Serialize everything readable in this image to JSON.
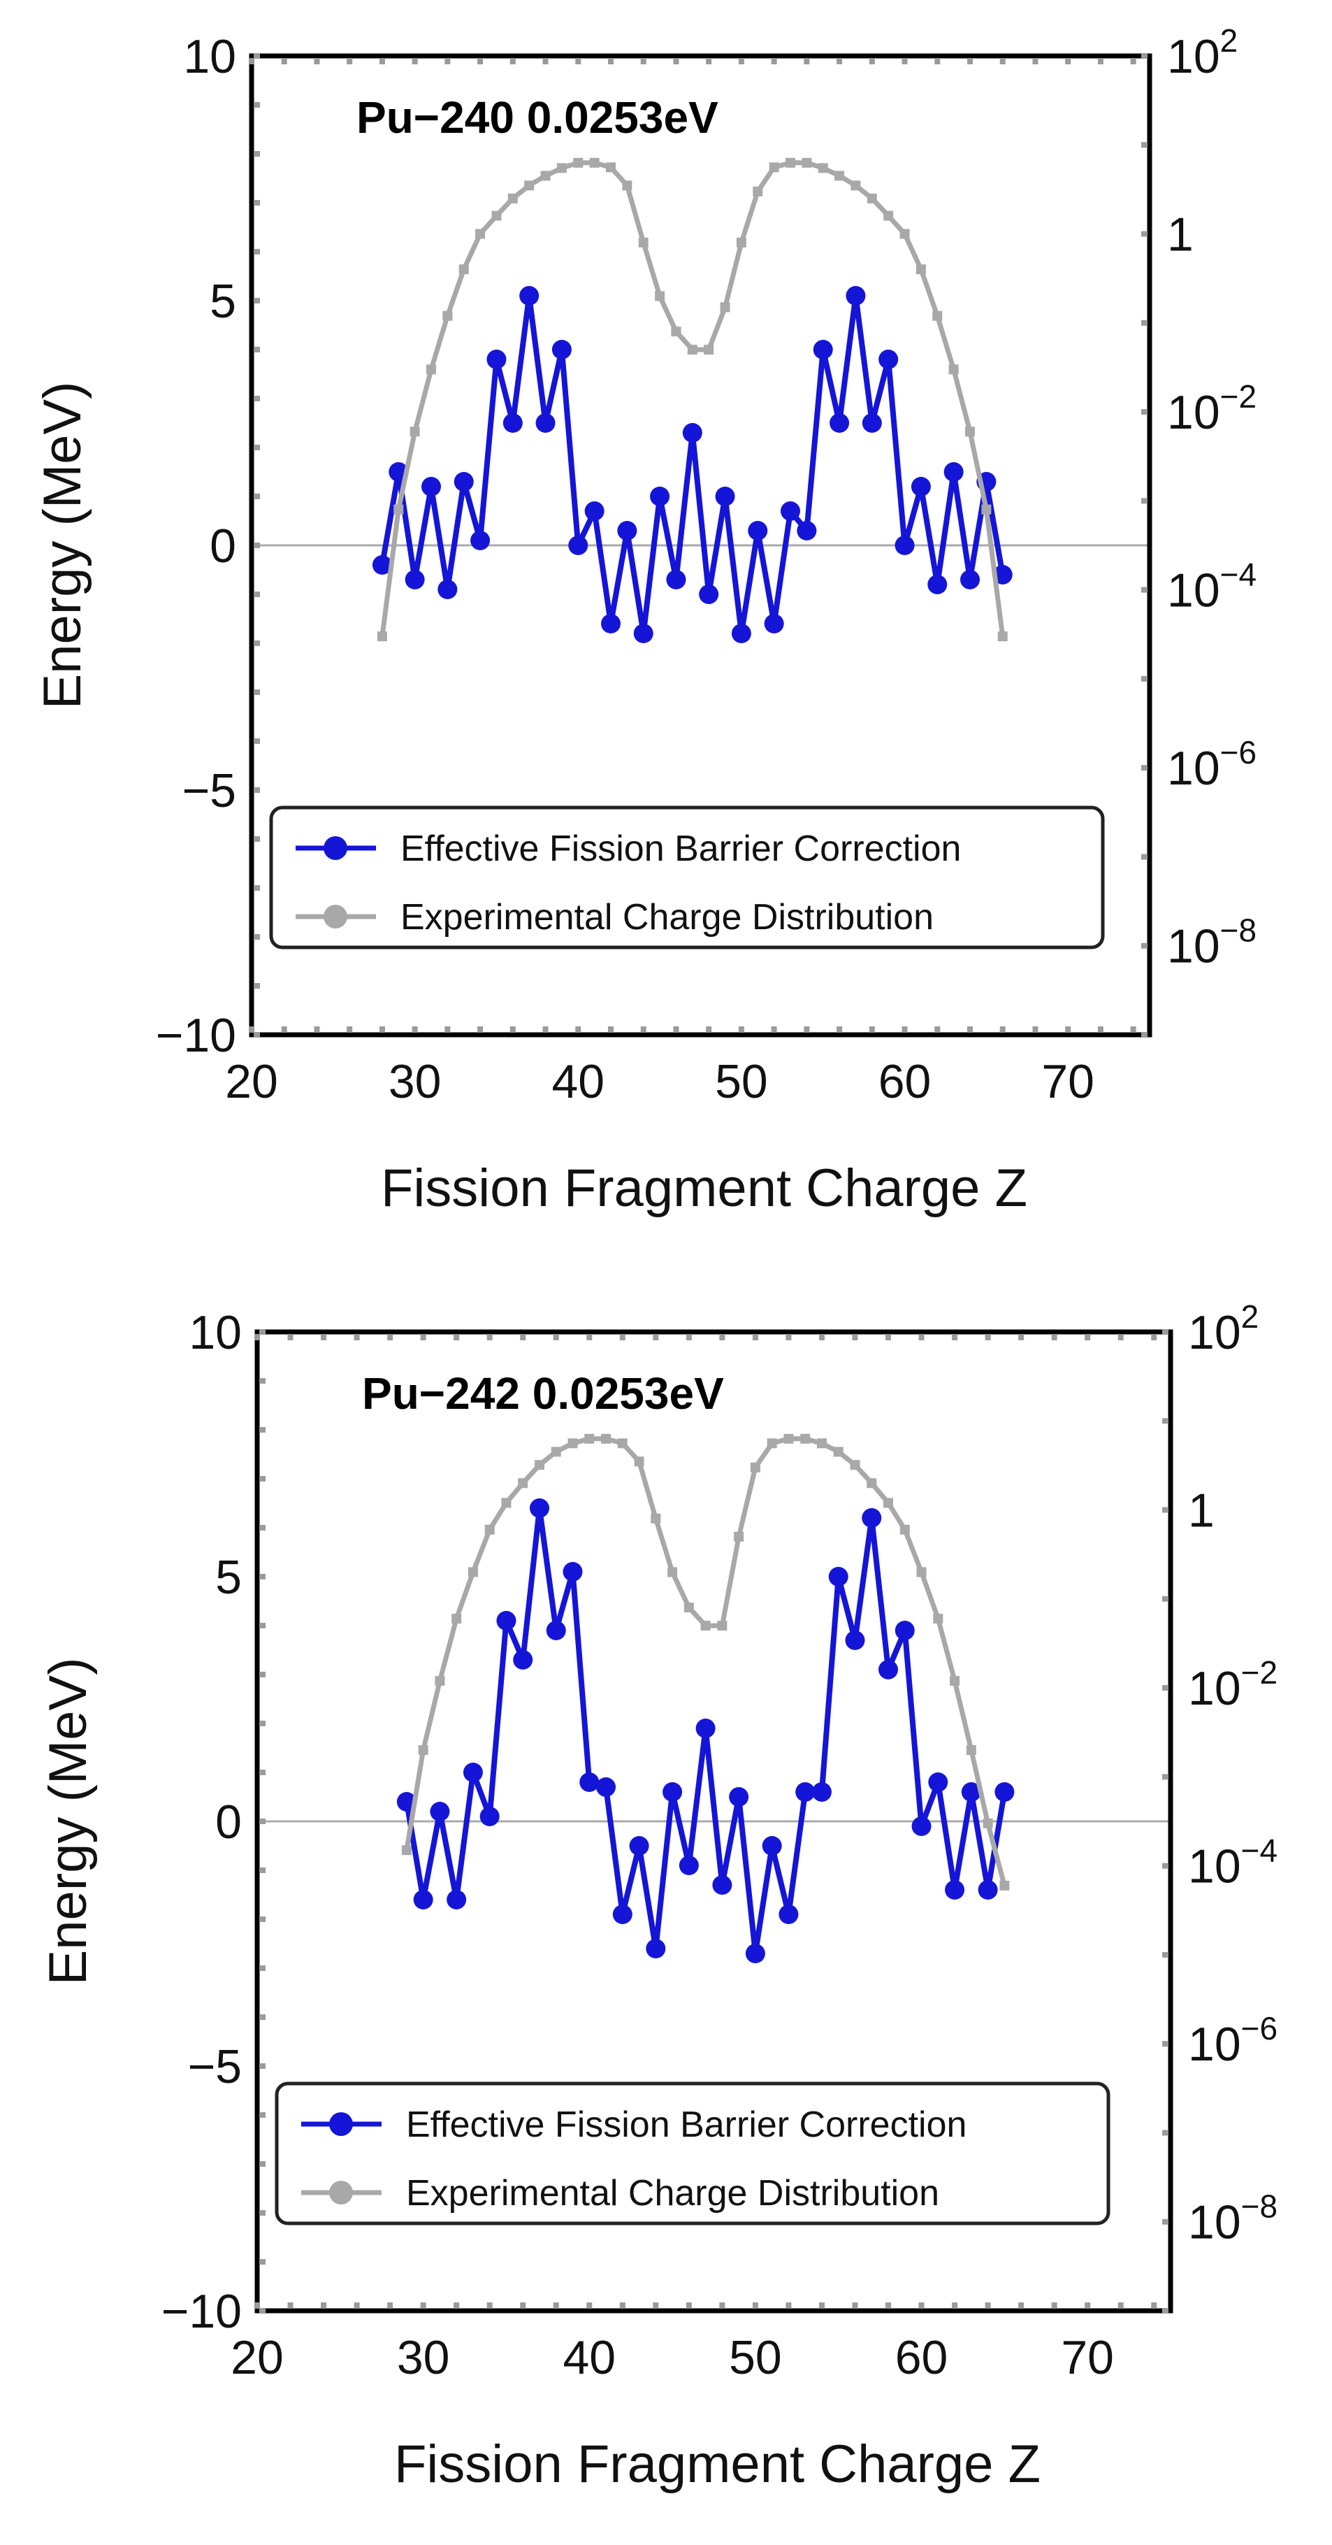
{
  "chart_data": [
    {
      "type": "line",
      "title": "Pu−240 0.0253eV",
      "xlabel": "Fission Fragment Charge Z",
      "ylabel": "Energy (MeV)",
      "xlim": [
        20,
        75
      ],
      "ylim": [
        -10,
        10
      ],
      "x_ticks": [
        "20",
        "30",
        "40",
        "50",
        "60",
        "70"
      ],
      "y_ticks": [
        "−10",
        "−5",
        "0",
        "5",
        "10"
      ],
      "y2_scale": "log",
      "y2_ticks": [
        "10^2",
        "1",
        "10^-2",
        "10^-4",
        "10^-6",
        "10^-8"
      ],
      "y2_tick_labels": [
        {
          "base": "10",
          "exp": "2"
        },
        {
          "base": "1",
          "exp": ""
        },
        {
          "base": "10",
          "exp": "−2"
        },
        {
          "base": "10",
          "exp": "−4"
        },
        {
          "base": "10",
          "exp": "−6"
        },
        {
          "base": "10",
          "exp": "−8"
        }
      ],
      "legend_position": "lower-left",
      "series": [
        {
          "name": "Effective Fission Barrier Correction",
          "axis": "left",
          "color": "#1515d8",
          "x": [
            28,
            29,
            30,
            31,
            32,
            33,
            34,
            35,
            36,
            37,
            38,
            39,
            40,
            41,
            42,
            43,
            44,
            45,
            46,
            47,
            48,
            49,
            50,
            51,
            52,
            53,
            54,
            55,
            56,
            57,
            58,
            59,
            60,
            61,
            62,
            63,
            64,
            65,
            66
          ],
          "values": [
            -0.4,
            1.5,
            -0.7,
            1.2,
            -0.9,
            1.3,
            0.1,
            3.8,
            2.5,
            5.1,
            2.5,
            4.0,
            0.0,
            0.7,
            -1.6,
            0.3,
            -1.8,
            1.0,
            -0.7,
            2.3,
            -1.0,
            1.0,
            -1.8,
            0.3,
            -1.6,
            0.7,
            0.3,
            4.0,
            2.5,
            5.1,
            2.5,
            3.8,
            0.0,
            1.2,
            -0.8,
            1.5,
            -0.7,
            1.3,
            -0.6
          ]
        },
        {
          "name": "Experimental Charge Distribution",
          "axis": "right",
          "color": "#a8a8a8",
          "x": [
            28,
            29,
            30,
            31,
            32,
            33,
            34,
            35,
            36,
            37,
            38,
            39,
            40,
            41,
            42,
            43,
            44,
            45,
            46,
            47,
            48,
            49,
            50,
            51,
            52,
            53,
            54,
            55,
            56,
            57,
            58,
            59,
            60,
            61,
            62,
            63,
            64,
            65,
            66
          ],
          "values": [
            3e-05,
            0.0008,
            0.006,
            0.03,
            0.12,
            0.4,
            1.0,
            1.6,
            2.5,
            3.5,
            4.5,
            5.5,
            6.3,
            6.3,
            5.6,
            3.5,
            0.8,
            0.2,
            0.08,
            0.05,
            0.05,
            0.15,
            0.8,
            3.0,
            5.6,
            6.3,
            6.3,
            5.5,
            4.5,
            3.5,
            2.5,
            1.6,
            1.0,
            0.4,
            0.12,
            0.03,
            0.006,
            0.0008,
            3e-05
          ]
        }
      ]
    },
    {
      "type": "line",
      "title": "Pu−242 0.0253eV",
      "xlabel": "Fission Fragment Charge Z",
      "ylabel": "Energy (MeV)",
      "xlim": [
        20,
        75
      ],
      "ylim": [
        -10,
        10
      ],
      "x_ticks": [
        "20",
        "30",
        "40",
        "50",
        "60",
        "70"
      ],
      "y_ticks": [
        "−10",
        "−5",
        "0",
        "5",
        "10"
      ],
      "y2_scale": "log",
      "y2_ticks": [
        "10^2",
        "1",
        "10^-2",
        "10^-4",
        "10^-6",
        "10^-8"
      ],
      "y2_tick_labels": [
        {
          "base": "10",
          "exp": "2"
        },
        {
          "base": "1",
          "exp": ""
        },
        {
          "base": "10",
          "exp": "−2"
        },
        {
          "base": "10",
          "exp": "−4"
        },
        {
          "base": "10",
          "exp": "−6"
        },
        {
          "base": "10",
          "exp": "−8"
        }
      ],
      "legend_position": "lower-left",
      "series": [
        {
          "name": "Effective Fission Barrier Correction",
          "axis": "left",
          "color": "#1515d8",
          "x": [
            29,
            30,
            31,
            32,
            33,
            34,
            35,
            36,
            37,
            38,
            39,
            40,
            41,
            42,
            43,
            44,
            45,
            46,
            47,
            48,
            49,
            50,
            51,
            52,
            53,
            54,
            55,
            56,
            57,
            58,
            59,
            60,
            61,
            62,
            63,
            64,
            65
          ],
          "values": [
            0.4,
            -1.6,
            0.2,
            -1.6,
            1.0,
            0.1,
            4.1,
            3.3,
            6.4,
            3.9,
            5.1,
            0.8,
            0.7,
            -1.9,
            -0.5,
            -2.6,
            0.6,
            -0.9,
            1.9,
            -1.3,
            0.5,
            -2.7,
            -0.5,
            -1.9,
            0.6,
            0.6,
            5.0,
            3.7,
            6.2,
            3.1,
            3.9,
            -0.1,
            0.8,
            -1.4,
            0.6,
            -1.4,
            0.6
          ]
        },
        {
          "name": "Experimental Charge Distribution",
          "axis": "right",
          "color": "#a8a8a8",
          "x": [
            29,
            30,
            31,
            32,
            33,
            34,
            35,
            36,
            37,
            38,
            39,
            40,
            41,
            42,
            43,
            44,
            45,
            46,
            47,
            48,
            49,
            50,
            51,
            52,
            53,
            54,
            55,
            56,
            57,
            58,
            59,
            60,
            61,
            62,
            63,
            64,
            65
          ],
          "values": [
            0.00015,
            0.002,
            0.012,
            0.06,
            0.2,
            0.6,
            1.2,
            2.0,
            3.2,
            4.5,
            5.6,
            6.3,
            6.3,
            5.6,
            3.5,
            0.8,
            0.2,
            0.08,
            0.05,
            0.05,
            0.5,
            3.0,
            5.6,
            6.3,
            6.3,
            5.6,
            4.5,
            3.2,
            2.0,
            1.2,
            0.6,
            0.2,
            0.06,
            0.012,
            0.002,
            0.0003,
            6e-05
          ]
        }
      ]
    }
  ]
}
